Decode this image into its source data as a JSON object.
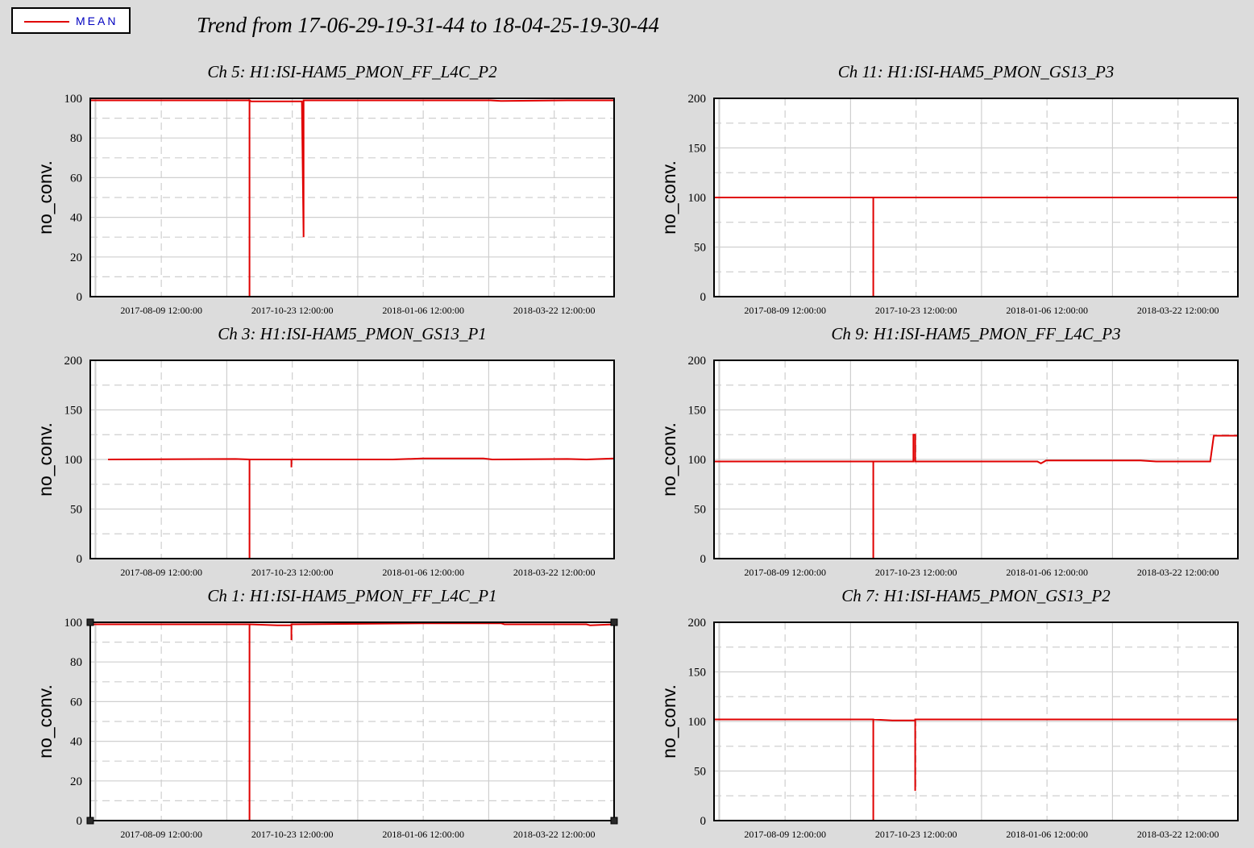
{
  "legend": {
    "label": "MEAN",
    "color": "#e00000"
  },
  "title": "Trend from 17-06-29-19-31-44 to 18-04-25-19-30-44",
  "chart_data": [
    {
      "type": "line",
      "title": "Ch 5: H1:ISI-HAM5_PMON_FF_L4C_P2",
      "ylabel": "no_conv.",
      "ylim": [
        0,
        100
      ],
      "yticks": [
        0,
        20,
        40,
        60,
        80,
        100
      ],
      "xticks": [
        "2017-08-09 12:00:00",
        "2017-10-23 12:00:00",
        "2018-01-06 12:00:00",
        "2018-03-22 12:00:00"
      ],
      "xlim": [
        "2017-06-29 19:31:44",
        "2018-04-25 19:30:44"
      ],
      "grid": true,
      "series": [
        {
          "color": "#e00000",
          "x": [
            "2017-06-29 19:31:44",
            "2017-08-28",
            "2017-09-29",
            "2017-09-29",
            "2017-09-29",
            "2017-09-30",
            "2017-10-29",
            "2017-10-30",
            "2017-10-30",
            "2017-10-31",
            "2018-01-06",
            "2018-02-14",
            "2018-02-20",
            "2018-03-30",
            "2018-04-15",
            "2018-04-25 19:30:44"
          ],
          "y": [
            99,
            99,
            99,
            0,
            99,
            98.5,
            98.5,
            30,
            99,
            99,
            99,
            99,
            98.7,
            99,
            99,
            99
          ]
        }
      ]
    },
    {
      "type": "line",
      "title": "Ch 11: H1:ISI-HAM5_PMON_GS13_P3",
      "ylabel": "no_conv.",
      "ylim": [
        0,
        200
      ],
      "yticks": [
        0,
        50,
        100,
        150,
        200
      ],
      "xticks": [
        "2017-08-09 12:00:00",
        "2017-10-23 12:00:00",
        "2018-01-06 12:00:00",
        "2018-03-22 12:00:00"
      ],
      "xlim": [
        "2017-06-29 19:31:44",
        "2018-04-25 19:30:44"
      ],
      "grid": true,
      "series": [
        {
          "color": "#e00000",
          "x": [
            "2017-06-29 19:31:44",
            "2017-09-29",
            "2017-09-29",
            "2017-09-29",
            "2018-04-25 19:30:44"
          ],
          "y": [
            100,
            100,
            0,
            100,
            100
          ]
        }
      ]
    },
    {
      "type": "line",
      "title": "Ch 3: H1:ISI-HAM5_PMON_GS13_P1",
      "ylabel": "no_conv.",
      "ylim": [
        0,
        200
      ],
      "yticks": [
        0,
        50,
        100,
        150,
        200
      ],
      "xticks": [
        "2017-08-09 12:00:00",
        "2017-10-23 12:00:00",
        "2018-01-06 12:00:00",
        "2018-03-22 12:00:00"
      ],
      "xlim": [
        "2017-06-29 19:31:44",
        "2018-04-25 19:30:44"
      ],
      "grid": true,
      "series": [
        {
          "color": "#e00000",
          "x": [
            "2017-07-10",
            "2017-09-21",
            "2017-09-29",
            "2017-09-29",
            "2017-09-29",
            "2017-10-23",
            "2017-10-23",
            "2017-10-23",
            "2017-12-20",
            "2018-01-06",
            "2018-02-10",
            "2018-02-15",
            "2018-03-30",
            "2018-04-10",
            "2018-04-25 19:30:44"
          ],
          "y": [
            100,
            100.5,
            100,
            0,
            100,
            100,
            92,
            100,
            100,
            101,
            101,
            100,
            100.5,
            100,
            101
          ]
        }
      ]
    },
    {
      "type": "line",
      "title": "Ch 9: H1:ISI-HAM5_PMON_FF_L4C_P3",
      "ylabel": "no_conv.",
      "ylim": [
        0,
        200
      ],
      "yticks": [
        0,
        50,
        100,
        150,
        200
      ],
      "xticks": [
        "2017-08-09 12:00:00",
        "2017-10-23 12:00:00",
        "2018-01-06 12:00:00",
        "2018-03-22 12:00:00"
      ],
      "xlim": [
        "2017-06-29 19:31:44",
        "2018-04-25 19:30:44"
      ],
      "grid": true,
      "series": [
        {
          "color": "#e00000",
          "x": [
            "2017-06-29 19:31:44",
            "2017-09-29",
            "2017-09-29",
            "2017-09-29",
            "2017-10-22",
            "2017-10-22",
            "2017-10-23",
            "2017-10-23",
            "2018-01-01",
            "2018-01-03",
            "2018-01-06",
            "2018-03-01",
            "2018-03-10",
            "2018-04-10",
            "2018-04-12",
            "2018-04-25 19:30:44"
          ],
          "y": [
            98,
            98,
            0,
            98,
            98,
            125,
            125,
            98,
            98,
            96,
            99,
            99,
            98,
            98,
            124,
            124
          ]
        }
      ]
    },
    {
      "type": "line",
      "title": "Ch 1: H1:ISI-HAM5_PMON_FF_L4C_P1",
      "ylabel": "no_conv.",
      "ylim": [
        0,
        100
      ],
      "yticks": [
        0,
        20,
        40,
        60,
        80,
        100
      ],
      "xticks": [
        "2017-08-09 12:00:00",
        "2017-10-23 12:00:00",
        "2018-01-06 12:00:00",
        "2018-03-22 12:00:00"
      ],
      "xlim": [
        "2017-06-29 19:31:44",
        "2018-04-25 19:30:44"
      ],
      "grid": true,
      "series": [
        {
          "color": "#e00000",
          "x": [
            "2017-06-29 19:31:44",
            "2017-09-21",
            "2017-09-29",
            "2017-09-29",
            "2017-09-29",
            "2017-10-15",
            "2017-10-23",
            "2017-10-23",
            "2017-10-23",
            "2018-01-06",
            "2018-02-20",
            "2018-02-22",
            "2018-04-10",
            "2018-04-12",
            "2018-04-25 19:30:44"
          ],
          "y": [
            99,
            99,
            99,
            0,
            99,
            98.5,
            98.5,
            91,
            99,
            99.5,
            99.5,
            99,
            99,
            98.5,
            99
          ]
        }
      ]
    },
    {
      "type": "line",
      "title": "Ch 7: H1:ISI-HAM5_PMON_GS13_P2",
      "ylabel": "no_conv.",
      "ylim": [
        0,
        200
      ],
      "yticks": [
        0,
        50,
        100,
        150,
        200
      ],
      "xticks": [
        "2017-08-09 12:00:00",
        "2017-10-23 12:00:00",
        "2018-01-06 12:00:00",
        "2018-03-22 12:00:00"
      ],
      "xlim": [
        "2017-06-29 19:31:44",
        "2018-04-25 19:30:44"
      ],
      "grid": true,
      "series": [
        {
          "color": "#e00000",
          "x": [
            "2017-06-29 19:31:44",
            "2017-08-28",
            "2017-09-14",
            "2017-09-29",
            "2017-09-29",
            "2017-09-29",
            "2017-10-10",
            "2017-10-23",
            "2017-10-23",
            "2017-10-23",
            "2017-10-24",
            "2018-04-25 19:30:44"
          ],
          "y": [
            102,
            102,
            102,
            102,
            0,
            102,
            101,
            101,
            30,
            102,
            102,
            102
          ]
        }
      ]
    }
  ]
}
